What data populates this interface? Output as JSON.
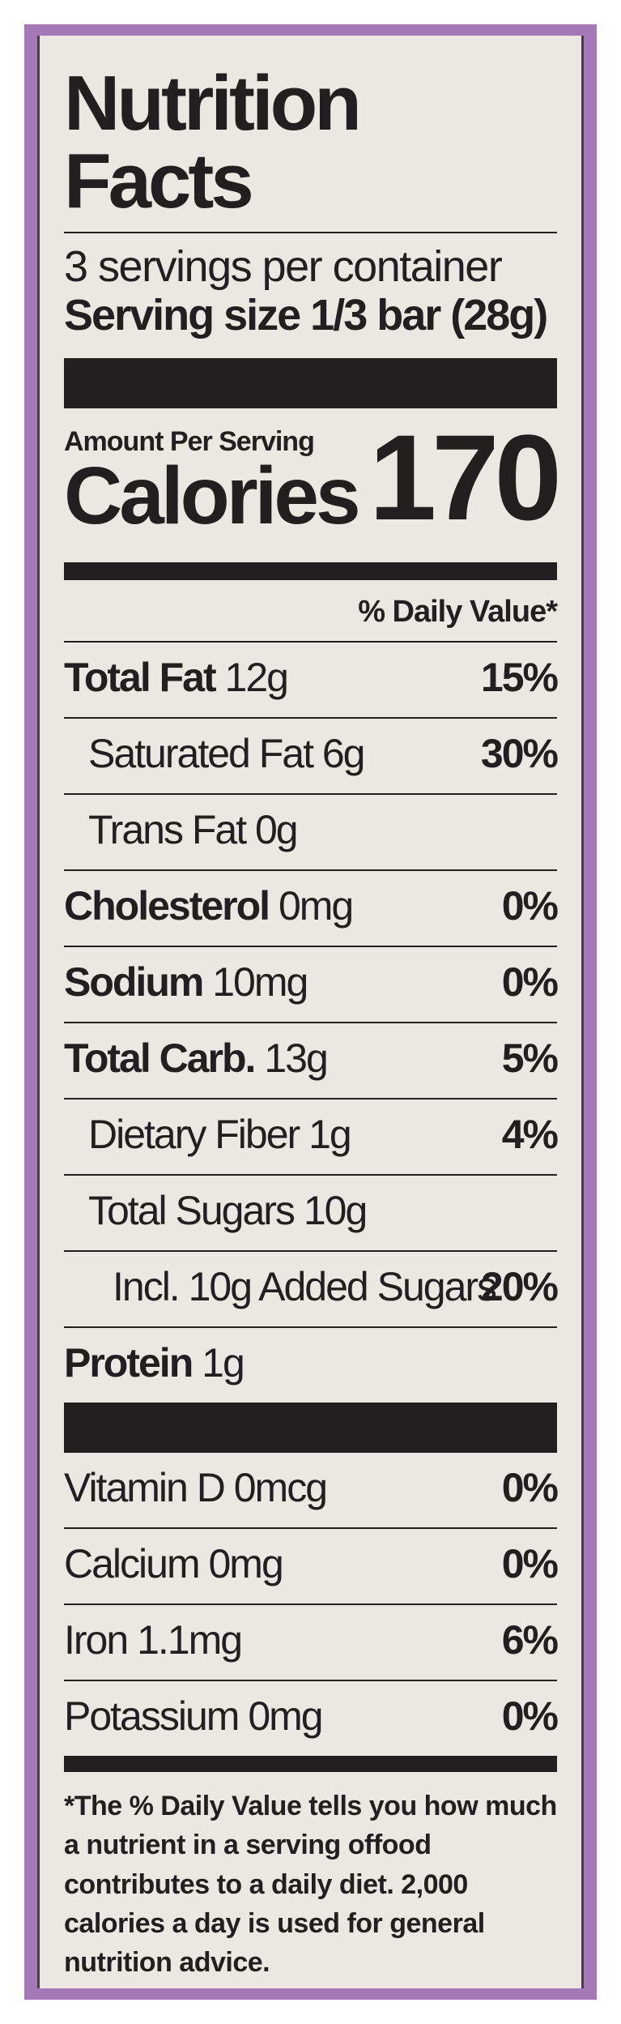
{
  "label": {
    "title": "Nutrition Facts",
    "servings_per_container": "3 servings per container",
    "serving_size_label": "Serving size",
    "serving_size_value": "1/3 bar (28g)",
    "amount_per_serving": "Amount Per Serving",
    "calories_label": "Calories",
    "calories_value": "170",
    "daily_value_header": "% Daily Value*",
    "nutrients": [
      {
        "name": "Total Fat",
        "amount": "12g",
        "dv": "15%"
      },
      {
        "name": "Saturated Fat",
        "amount": "6g",
        "dv": "30%"
      },
      {
        "name": "Trans Fat",
        "amount": "0g",
        "dv": ""
      },
      {
        "name": "Cholesterol",
        "amount": "0mg",
        "dv": "0%"
      },
      {
        "name": "Sodium",
        "amount": "10mg",
        "dv": "0%"
      },
      {
        "name": "Total Carb.",
        "amount": "13g",
        "dv": "5%"
      },
      {
        "name": "Dietary Fiber",
        "amount": "1g",
        "dv": "4%"
      },
      {
        "name": "Total Sugars",
        "amount": "10g",
        "dv": ""
      },
      {
        "name": "Incl. 10g Added Sugars",
        "amount": "",
        "dv": "20%"
      },
      {
        "name": "Protein",
        "amount": "1g",
        "dv": ""
      }
    ],
    "vitamins": [
      {
        "name": "Vitamin D",
        "amount": "0mcg",
        "dv": "0%"
      },
      {
        "name": "Calcium",
        "amount": "0mg",
        "dv": "0%"
      },
      {
        "name": "Iron",
        "amount": "1.1mg",
        "dv": "6%"
      },
      {
        "name": "Potassium",
        "amount": "0mg",
        "dv": "0%"
      }
    ],
    "footnote": "*The % Daily Value tells you how much a nutrient in a serving offood contributes to a daily diet. 2,000 calories a day is used for general nutrition advice."
  },
  "colors": {
    "frame": "#a578b7",
    "panel": "#ebe8e3",
    "ink": "#231f20"
  }
}
